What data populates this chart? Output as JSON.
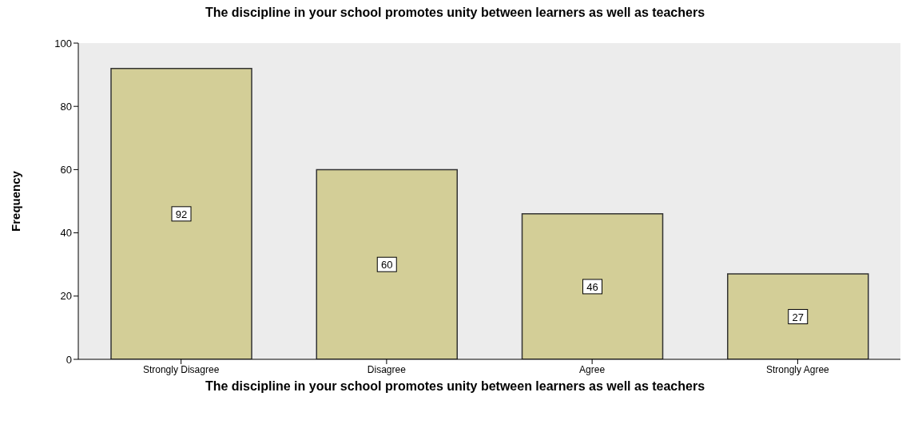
{
  "chart_data": {
    "type": "bar",
    "title": "The discipline in your school promotes unity between learners as well as teachers",
    "xlabel": "The discipline in your school promotes unity between learners as well as teachers",
    "ylabel": "Frequency",
    "categories": [
      "Strongly Disagree",
      "Disagree",
      "Agree",
      "Strongly Agree"
    ],
    "values": [
      92,
      60,
      46,
      27
    ],
    "color": "#d3ce97",
    "ylim": [
      0,
      100
    ],
    "yticks": [
      0,
      20,
      40,
      60,
      80,
      100
    ],
    "data_labels": true,
    "grid": false
  }
}
